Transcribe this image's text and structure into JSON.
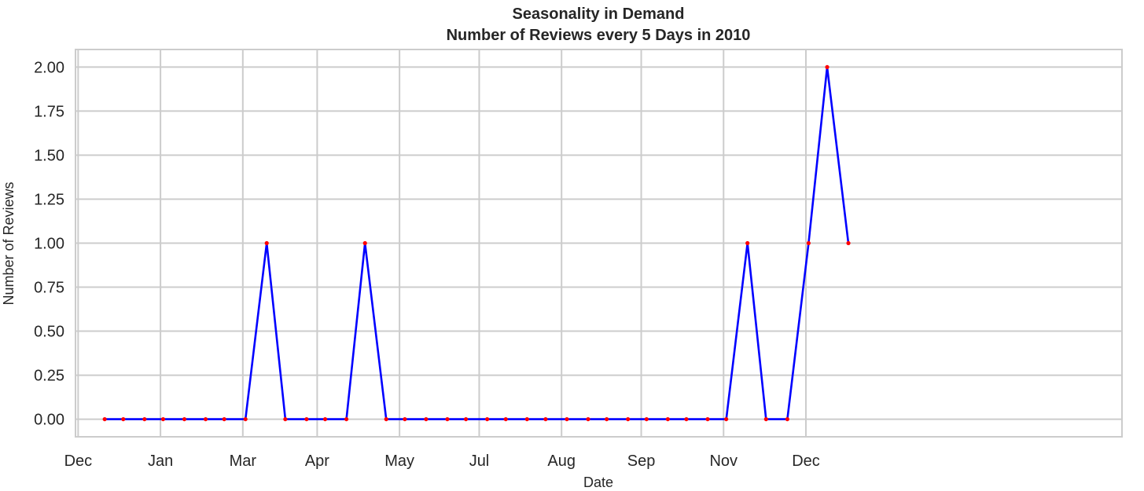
{
  "chart_data": {
    "type": "line",
    "title": "Seasonality in Demand",
    "subtitle": "Number of Reviews every 5 Days in 2010",
    "xlabel": "Date",
    "ylabel": "Number of Reviews",
    "xlim": [
      "2009-11-30",
      "2010-12-29"
    ],
    "ylim": [
      -0.1,
      2.1
    ],
    "grid": true,
    "x_tick_labels": [
      {
        "label": "Dec",
        "x": "2009-12-01"
      },
      {
        "label": "Jan",
        "x": "2010-01-01"
      },
      {
        "label": "Mar",
        "x": "2010-02-01"
      },
      {
        "label": "Apr",
        "x": "2010-03-01"
      },
      {
        "label": "May",
        "x": "2010-04-01"
      },
      {
        "label": "Jul",
        "x": "2010-05-01"
      },
      {
        "label": "Aug",
        "x": "2010-06-01"
      },
      {
        "label": "Sep",
        "x": "2010-07-01"
      },
      {
        "label": "Nov",
        "x": "2010-08-01"
      },
      {
        "label": "Dec",
        "x": "2010-09-01"
      }
    ],
    "y_tick_labels": [
      "0.00",
      "0.25",
      "0.50",
      "0.75",
      "1.00",
      "1.25",
      "1.50",
      "1.75",
      "2.00"
    ],
    "series": [
      {
        "line_color": "#0000ff",
        "marker_color": "#ff0000",
        "x": [
          "2009-12-11",
          "2009-12-18",
          "2009-12-26",
          "2010-01-02",
          "2010-01-10",
          "2010-01-18",
          "2010-01-25",
          "2010-02-02",
          "2010-02-10",
          "2010-02-17",
          "2010-02-25",
          "2010-03-04",
          "2010-03-12",
          "2010-03-19",
          "2010-03-27",
          "2010-04-03",
          "2010-04-11",
          "2010-04-19",
          "2010-04-26",
          "2010-05-04",
          "2010-05-11",
          "2010-05-19",
          "2010-05-26",
          "2010-06-03",
          "2010-06-11",
          "2010-06-18",
          "2010-06-26",
          "2010-07-03",
          "2010-07-11",
          "2010-07-18",
          "2010-07-26",
          "2010-08-02",
          "2010-08-10",
          "2010-08-17",
          "2010-08-25",
          "2010-09-02",
          "2010-09-09",
          "2010-09-17"
        ],
        "y": [
          0,
          0,
          0,
          0,
          0,
          0,
          0,
          0,
          1,
          0,
          0,
          0,
          0,
          1,
          0,
          0,
          0,
          0,
          0,
          0,
          0,
          0,
          0,
          0,
          0,
          0,
          0,
          0,
          0,
          0,
          0,
          0,
          1,
          0,
          0,
          1,
          2,
          1
        ]
      }
    ]
  }
}
